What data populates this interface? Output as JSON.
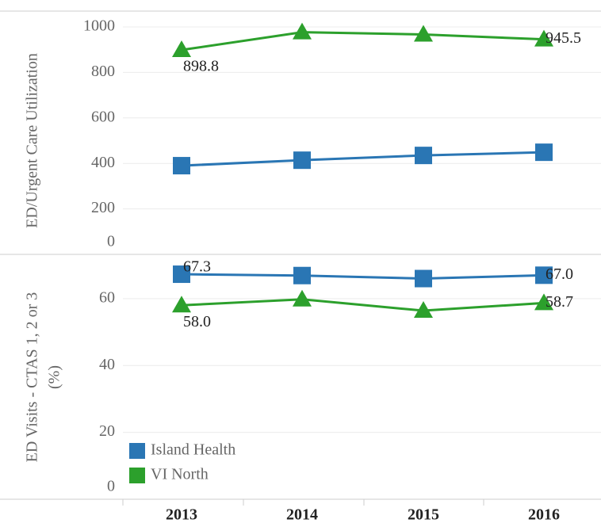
{
  "chart_data": [
    {
      "type": "line",
      "ylabel": "ED/Urgent Care Utilization",
      "categories": [
        "2013",
        "2014",
        "2015",
        "2016"
      ],
      "ylim": [
        0,
        1000
      ],
      "yticks": [
        0,
        200,
        400,
        600,
        800,
        1000
      ],
      "grid": true,
      "series": [
        {
          "color": "#2a76b4",
          "marker": "square",
          "values": [
            390,
            414,
            435,
            449
          ],
          "value_labels": [
            null,
            null,
            null,
            null
          ]
        },
        {
          "color": "#2ca02c",
          "marker": "triangle",
          "values": [
            898.8,
            977,
            967,
            945.5
          ],
          "value_labels": [
            "898.8",
            null,
            null,
            "945.5"
          ]
        }
      ]
    },
    {
      "type": "line",
      "ylabel": [
        "ED Visits - CTAS 1, 2 or 3",
        "(%)"
      ],
      "categories": [
        "2013",
        "2014",
        "2015",
        "2016"
      ],
      "ylim": [
        0,
        73
      ],
      "yticks": [
        0,
        20,
        40,
        60
      ],
      "grid": true,
      "legend": "lower left",
      "series": [
        {
          "name": "Island Health",
          "color": "#2a76b4",
          "marker": "square",
          "values": [
            67.3,
            66.9,
            66.0,
            67.0
          ],
          "value_labels": [
            "67.3",
            null,
            null,
            "67.0"
          ]
        },
        {
          "name": "VI North",
          "color": "#2ca02c",
          "marker": "triangle",
          "values": [
            58.0,
            59.8,
            56.4,
            58.7
          ],
          "value_labels": [
            "58.0",
            null,
            null,
            "58.7"
          ]
        }
      ]
    }
  ]
}
